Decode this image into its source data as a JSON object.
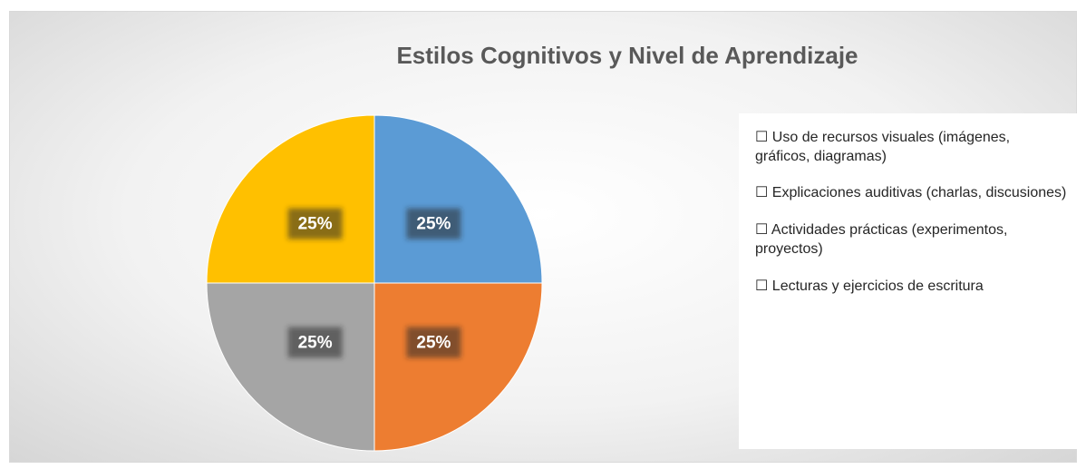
{
  "chart_data": {
    "type": "pie",
    "title": "Estilos Cognitivos y Nivel de Aprendizaje",
    "categories": [
      "☐ Uso de recursos visuales (imágenes, gráficos, diagramas)",
      "☐ Explicaciones auditivas (charlas, discusiones)",
      "☐ Actividades prácticas (experimentos, proyectos)",
      "☐ Lecturas y ejercicios de escritura"
    ],
    "values": [
      25,
      25,
      25,
      25
    ],
    "value_labels": [
      "25%",
      "25%",
      "25%",
      "25%"
    ],
    "colors": [
      "#5b9bd5",
      "#ed7d31",
      "#a5a5a5",
      "#ffc000"
    ],
    "legend": "right"
  }
}
